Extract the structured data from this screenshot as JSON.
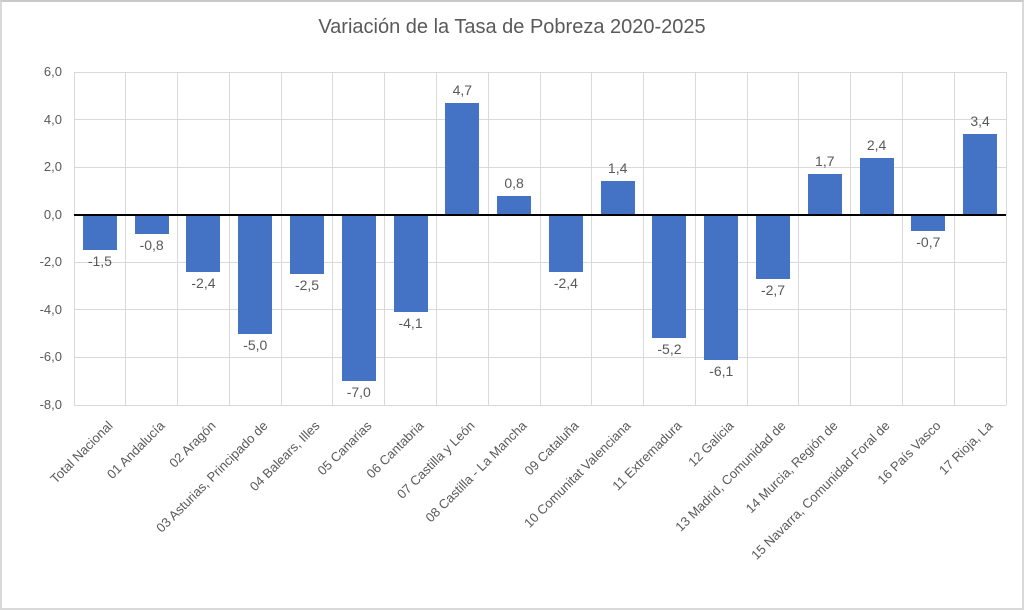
{
  "page": {
    "background": "#ffffff",
    "frame_border_color": "#d9d9d9"
  },
  "chart_data": {
    "type": "bar",
    "title": "Variación de la Tasa de Pobreza 2020-2025",
    "xlabel": "",
    "ylabel": "",
    "legend_position": "none",
    "grid": true,
    "ylim": [
      -8,
      6
    ],
    "ytick_step": 2,
    "ytick_labels": [
      "6,0",
      "4,0",
      "2,0",
      "0,0",
      "-2,0",
      "-4,0",
      "-6,0",
      "-8,0"
    ],
    "categories": [
      "Total Nacional",
      "01 Andalucía",
      "02 Aragón",
      "03 Asturias, Principado de",
      "04 Balears, Illes",
      "05 Canarias",
      "06 Cantabria",
      "07 Castilla y León",
      "08 Castilla - La Mancha",
      "09 Cataluña",
      "10 Comunitat Valenciana",
      "11 Extremadura",
      "12 Galicia",
      "13 Madrid, Comunidad de",
      "14 Murcia, Región de",
      "15 Navarra, Comunidad Foral de",
      "16 País Vasco",
      "17 Rioja, La"
    ],
    "values": [
      -1.5,
      -0.8,
      -2.4,
      -5.0,
      -2.5,
      -7.0,
      -4.1,
      4.7,
      0.8,
      -2.4,
      1.4,
      -5.2,
      -6.1,
      -2.7,
      1.7,
      2.4,
      -0.7,
      3.4
    ],
    "value_labels": [
      "-1,5",
      "-0,8",
      "-2,4",
      "-5,0",
      "-2,5",
      "-7,0",
      "-4,1",
      "4,7",
      "0,8",
      "-2,4",
      "1,4",
      "-5,2",
      "-6,1",
      "-2,7",
      "1,7",
      "2,4",
      "-0,7",
      "3,4"
    ],
    "colors": {
      "bar": "#4472C4",
      "gridline": "#d9d9d9",
      "zero_axis": "#000000",
      "text": "#595959"
    }
  }
}
